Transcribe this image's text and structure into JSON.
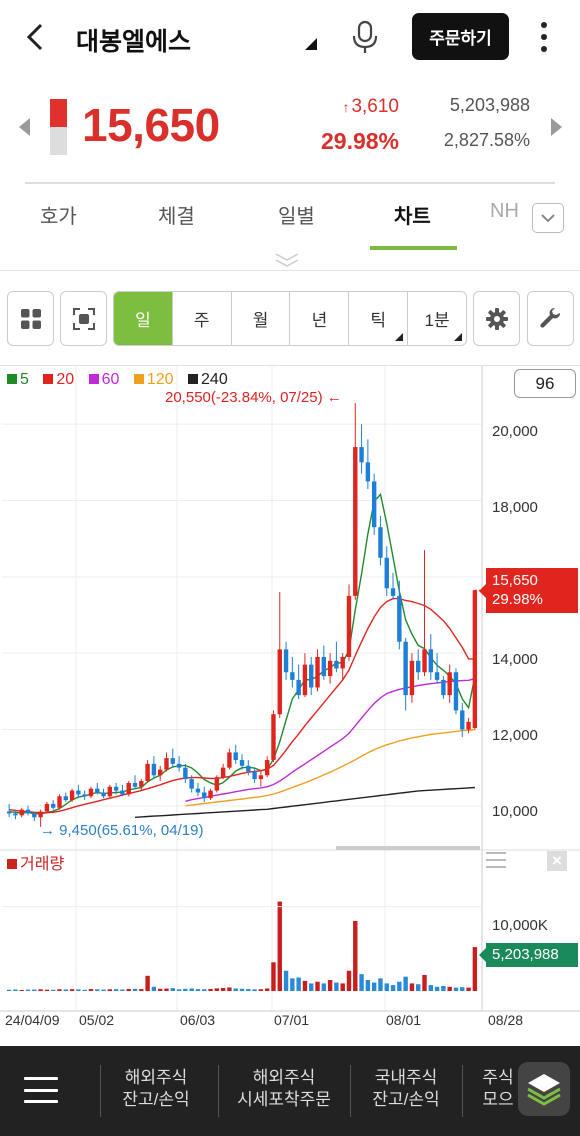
{
  "header": {
    "back_icon": "chevron-left-icon",
    "title": "대봉엘에스",
    "order_label": "주문하기"
  },
  "quote": {
    "price": "15,650",
    "change": "3,610",
    "change_pct": "29.98%",
    "volume": "5,203,988",
    "volume_ratio": "2,827.58%",
    "price_bar_fill": 0.5
  },
  "tabs": [
    {
      "label": "호가"
    },
    {
      "label": "체결"
    },
    {
      "label": "일별"
    },
    {
      "label": "차트",
      "active": true
    },
    {
      "label": "NH"
    }
  ],
  "toolbar": {
    "periods": [
      "일",
      "주",
      "월",
      "년",
      "틱",
      "1분"
    ],
    "active_period": "일"
  },
  "chart": {
    "legend": [
      {
        "label": "5",
        "color": "#1f8a2a"
      },
      {
        "label": "20",
        "color": "#e0251f"
      },
      {
        "label": "60",
        "color": "#c02ad6"
      },
      {
        "label": "120",
        "color": "#f0a020"
      },
      {
        "label": "240",
        "color": "#222222"
      }
    ],
    "lookback": "96",
    "high_annotation": "20,550(-23.84%, 07/25)",
    "low_annotation": "9,450(65.61%, 04/19)",
    "price_tag_value": "15,650",
    "price_tag_pct": "29.98%",
    "volume_legend": "거래량",
    "volume_tag": "5,203,988",
    "volume_axis_label": "10,000K",
    "price_axis": [
      "20,000",
      "18,000",
      "16,000",
      "14,000",
      "12,000",
      "10,000"
    ],
    "date_axis": [
      "24/04/09",
      "05/02",
      "06/03",
      "07/01",
      "08/01",
      "08/28"
    ]
  },
  "chart_data": {
    "type": "candlestick",
    "y_range": [
      9000,
      21000
    ],
    "up_color": "#e0251f",
    "down_color": "#1e7fd6",
    "candles": [
      [
        9850,
        10050,
        9700,
        9800
      ],
      [
        9800,
        9900,
        9650,
        9750
      ],
      [
        9750,
        9950,
        9700,
        9900
      ],
      [
        9900,
        10000,
        9750,
        9800
      ],
      [
        9800,
        9850,
        9600,
        9700
      ],
      [
        9700,
        9900,
        9450,
        9850
      ],
      [
        9850,
        10100,
        9800,
        10050
      ],
      [
        10050,
        10150,
        9900,
        9950
      ],
      [
        9950,
        10300,
        9900,
        10250
      ],
      [
        10250,
        10350,
        10100,
        10150
      ],
      [
        10150,
        10450,
        10100,
        10400
      ],
      [
        10400,
        10550,
        10200,
        10300
      ],
      [
        10300,
        10400,
        10150,
        10250
      ],
      [
        10250,
        10500,
        10200,
        10450
      ],
      [
        10450,
        10600,
        10300,
        10350
      ],
      [
        10350,
        10450,
        10200,
        10250
      ],
      [
        10250,
        10550,
        10200,
        10500
      ],
      [
        10500,
        10600,
        10300,
        10400
      ],
      [
        10400,
        10550,
        10250,
        10300
      ],
      [
        10300,
        10650,
        10250,
        10600
      ],
      [
        10600,
        10800,
        10450,
        10500
      ],
      [
        10500,
        10700,
        10400,
        10650
      ],
      [
        10650,
        11200,
        10600,
        11100
      ],
      [
        11100,
        11300,
        10700,
        10800
      ],
      [
        10800,
        11050,
        10650,
        10950
      ],
      [
        10950,
        11400,
        10900,
        11250
      ],
      [
        11250,
        11500,
        11000,
        11100
      ],
      [
        11100,
        11300,
        10900,
        11000
      ],
      [
        11000,
        11100,
        10600,
        10700
      ],
      [
        10700,
        10800,
        10350,
        10450
      ],
      [
        10450,
        10600,
        10250,
        10350
      ],
      [
        10350,
        10500,
        10100,
        10200
      ],
      [
        10200,
        10450,
        10150,
        10400
      ],
      [
        10400,
        10800,
        10350,
        10750
      ],
      [
        10750,
        11100,
        10700,
        11000
      ],
      [
        11000,
        11500,
        10950,
        11400
      ],
      [
        11400,
        11600,
        11100,
        11200
      ],
      [
        11200,
        11350,
        10950,
        11050
      ],
      [
        11050,
        11200,
        10800,
        10900
      ],
      [
        10900,
        11000,
        10600,
        10700
      ],
      [
        10700,
        10900,
        10500,
        10800
      ],
      [
        10800,
        11300,
        10750,
        11200
      ],
      [
        11200,
        12500,
        11150,
        12400
      ],
      [
        12400,
        15600,
        12300,
        14100
      ],
      [
        14100,
        14300,
        13300,
        13500
      ],
      [
        13500,
        13900,
        13100,
        13300
      ],
      [
        13300,
        13700,
        12800,
        12900
      ],
      [
        12900,
        14000,
        12850,
        13700
      ],
      [
        13700,
        13900,
        12900,
        13100
      ],
      [
        13100,
        14100,
        13000,
        13900
      ],
      [
        13900,
        14200,
        13300,
        13400
      ],
      [
        13400,
        14000,
        13200,
        13800
      ],
      [
        13800,
        14300,
        13500,
        13600
      ],
      [
        13600,
        14000,
        13300,
        13900
      ],
      [
        13900,
        15800,
        13800,
        15500
      ],
      [
        15500,
        20550,
        15400,
        19400
      ],
      [
        19400,
        20000,
        18700,
        19000
      ],
      [
        19000,
        19600,
        18300,
        18500
      ],
      [
        18500,
        18700,
        17100,
        17300
      ],
      [
        17300,
        17600,
        16300,
        16500
      ],
      [
        16500,
        16800,
        15500,
        15700
      ],
      [
        15700,
        16100,
        15400,
        15500
      ],
      [
        15500,
        15900,
        14100,
        14300
      ],
      [
        14300,
        14400,
        12500,
        12900
      ],
      [
        12900,
        14000,
        12700,
        13800
      ],
      [
        13800,
        14100,
        13300,
        13500
      ],
      [
        13500,
        16700,
        13400,
        14100
      ],
      [
        14100,
        14500,
        13300,
        13500
      ],
      [
        13500,
        14000,
        13200,
        13300
      ],
      [
        13300,
        13400,
        12800,
        12900
      ],
      [
        12900,
        13700,
        12700,
        13500
      ],
      [
        13500,
        13600,
        12400,
        12500
      ],
      [
        12500,
        12700,
        11800,
        12000
      ],
      [
        12000,
        12300,
        11900,
        12200
      ],
      [
        12040,
        15650,
        12000,
        15650
      ]
    ],
    "ma": {
      "5": [
        9850,
        9830,
        9810,
        9830,
        9790,
        9800,
        9820,
        9860,
        9930,
        10040,
        10160,
        10230,
        10260,
        10310,
        10350,
        10320,
        10340,
        10350,
        10360,
        10420,
        10450,
        10480,
        10630,
        10730,
        10800,
        10940,
        11020,
        11050,
        11060,
        10990,
        10860,
        10690,
        10600,
        10540,
        10610,
        10750,
        10910,
        11000,
        11010,
        10990,
        10920,
        10960,
        11220,
        11680,
        12250,
        12800,
        13040,
        13300,
        13310,
        13390,
        13540,
        13620,
        13740,
        13750,
        14080,
        15140,
        16080,
        17130,
        17980,
        18160,
        17400,
        16520,
        15630,
        14880,
        14500,
        14200,
        14120,
        13880,
        13680,
        13550,
        13400,
        13200,
        12800,
        12570,
        13400
      ],
      "20": [
        9900,
        9880,
        9860,
        9850,
        9830,
        9820,
        9820,
        9830,
        9860,
        9900,
        9950,
        10000,
        10040,
        10080,
        10120,
        10160,
        10200,
        10240,
        10280,
        10320,
        10360,
        10400,
        10450,
        10500,
        10550,
        10610,
        10660,
        10700,
        10730,
        10740,
        10740,
        10730,
        10720,
        10720,
        10740,
        10770,
        10810,
        10850,
        10880,
        10900,
        10920,
        10960,
        11060,
        11250,
        11460,
        11680,
        11880,
        12100,
        12300,
        12500,
        12700,
        12900,
        13100,
        13300,
        13560,
        13940,
        14300,
        14650,
        14950,
        15200,
        15350,
        15430,
        15430,
        15380,
        15350,
        15300,
        15250,
        15150,
        15000,
        14850,
        14650,
        14400,
        14150,
        13850,
        13850
      ],
      "60": [
        null,
        null,
        null,
        null,
        null,
        null,
        null,
        null,
        null,
        null,
        null,
        null,
        null,
        null,
        null,
        null,
        null,
        null,
        null,
        null,
        null,
        null,
        null,
        null,
        null,
        null,
        null,
        null,
        10120,
        10160,
        10190,
        10220,
        10250,
        10280,
        10310,
        10340,
        10370,
        10400,
        10430,
        10450,
        10470,
        10500,
        10560,
        10650,
        10760,
        10880,
        10990,
        11100,
        11210,
        11320,
        11430,
        11540,
        11650,
        11760,
        11900,
        12100,
        12300,
        12500,
        12680,
        12830,
        12940,
        13000,
        13050,
        13090,
        13120,
        13150,
        13180,
        13200,
        13220,
        13240,
        13260,
        13270,
        13280,
        13290,
        13330
      ],
      "120": [
        null,
        null,
        null,
        null,
        null,
        null,
        null,
        null,
        null,
        null,
        null,
        null,
        null,
        null,
        null,
        null,
        null,
        null,
        null,
        null,
        null,
        null,
        null,
        null,
        null,
        null,
        null,
        null,
        10000,
        10020,
        10040,
        10060,
        10080,
        10100,
        10120,
        10140,
        10160,
        10180,
        10200,
        10220,
        10240,
        10270,
        10310,
        10360,
        10420,
        10480,
        10540,
        10600,
        10670,
        10740,
        10810,
        10880,
        10960,
        11040,
        11120,
        11210,
        11300,
        11390,
        11470,
        11540,
        11600,
        11650,
        11700,
        11740,
        11780,
        11810,
        11840,
        11870,
        11890,
        11910,
        11930,
        11950,
        11970,
        11980,
        12000
      ],
      "240": [
        null,
        null,
        null,
        null,
        null,
        null,
        null,
        null,
        null,
        null,
        null,
        null,
        null,
        null,
        null,
        null,
        null,
        null,
        null,
        null,
        9700,
        9710,
        9720,
        9730,
        9740,
        9750,
        9760,
        9770,
        9780,
        9790,
        9800,
        9810,
        9820,
        9830,
        9840,
        9850,
        9860,
        9870,
        9880,
        9890,
        9900,
        9910,
        9930,
        9950,
        9970,
        9990,
        10010,
        10030,
        10050,
        10070,
        10090,
        10110,
        10130,
        10150,
        10170,
        10190,
        10210,
        10230,
        10250,
        10270,
        10290,
        10310,
        10330,
        10350,
        10370,
        10390,
        10400,
        10410,
        10420,
        10430,
        10440,
        10450,
        10460,
        10470,
        10480
      ]
    },
    "volume_range": [
      0,
      16000
    ],
    "volumes": [
      150,
      180,
      120,
      160,
      170,
      200,
      150,
      140,
      210,
      180,
      220,
      190,
      140,
      230,
      200,
      160,
      210,
      220,
      180,
      240,
      260,
      230,
      1800,
      500,
      260,
      290,
      340,
      200,
      260,
      300,
      220,
      210,
      240,
      310,
      360,
      420,
      300,
      260,
      230,
      200,
      210,
      300,
      3400,
      10600,
      2400,
      1500,
      1600,
      1200,
      900,
      1100,
      900,
      1300,
      1000,
      900,
      2400,
      8300,
      2000,
      1300,
      1000,
      1500,
      900,
      700,
      1100,
      1700,
      900,
      800,
      1900,
      700,
      500,
      600,
      500,
      400,
      450,
      400,
      5200
    ]
  }
}
